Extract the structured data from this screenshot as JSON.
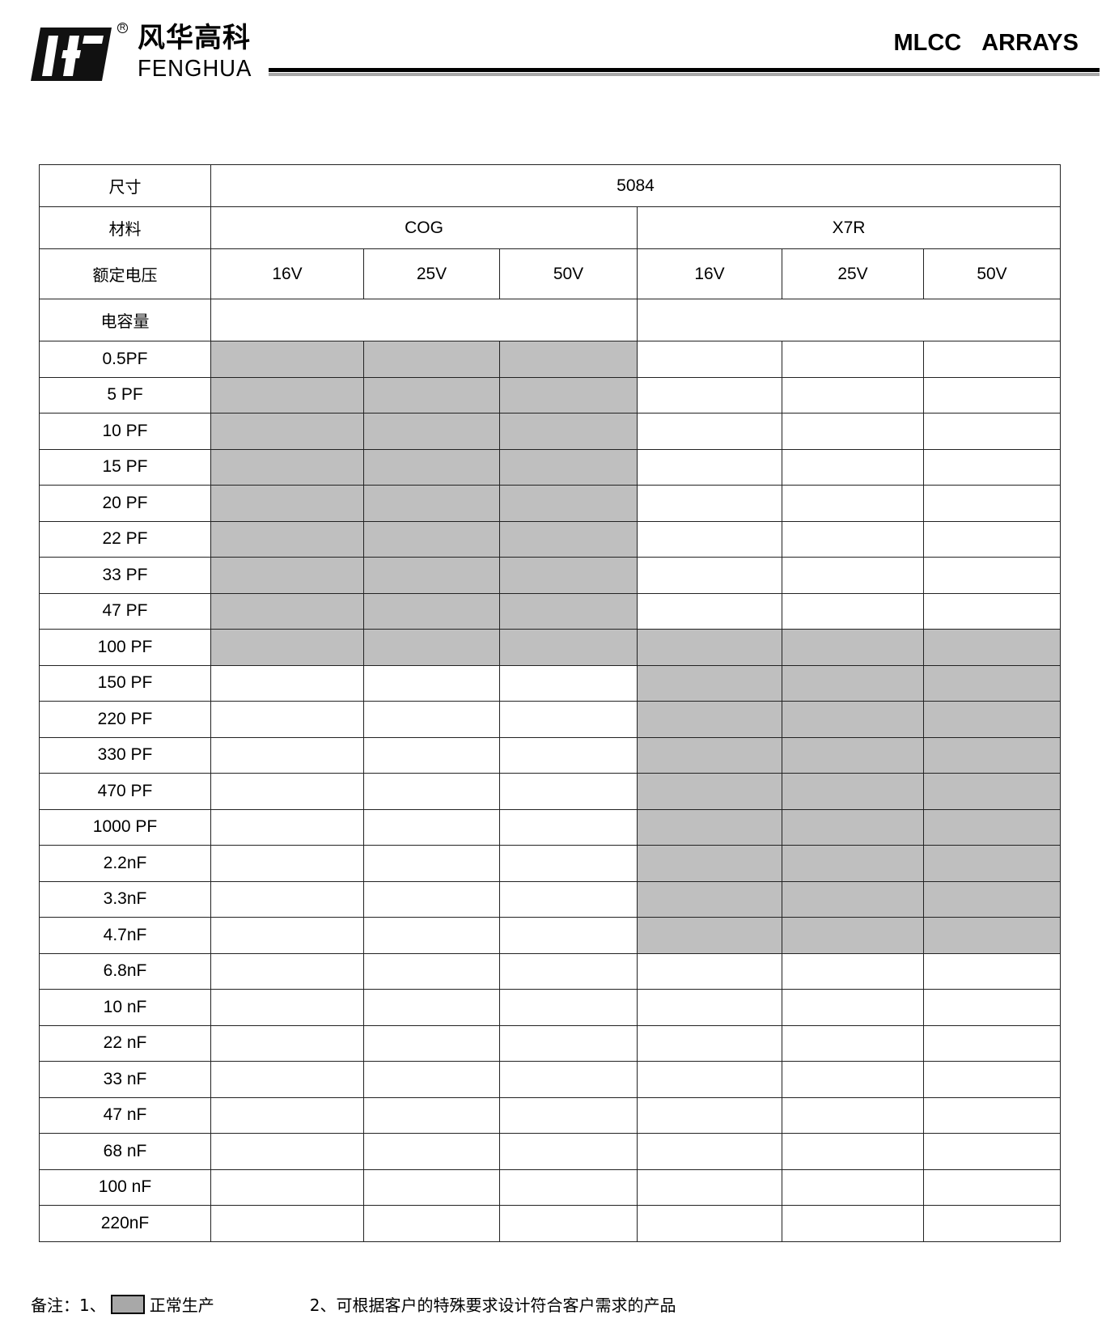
{
  "header": {
    "brand_cn": "风华高科",
    "brand_en": "FENGHUA",
    "registered": "R",
    "title": "MLCC ARRAYS"
  },
  "table": {
    "size_label": "尺寸",
    "size_value": "5084",
    "material_label": "材料",
    "materials": [
      "COG",
      "X7R"
    ],
    "voltage_label": "额定电压",
    "voltages": [
      "16V",
      "25V",
      "50V",
      "16V",
      "25V",
      "50V"
    ],
    "capacitance_label": "电容量",
    "rows": [
      {
        "cap": "0.5PF",
        "avail": [
          1,
          1,
          1,
          0,
          0,
          0
        ]
      },
      {
        "cap": "5 PF",
        "avail": [
          1,
          1,
          1,
          0,
          0,
          0
        ]
      },
      {
        "cap": "10 PF",
        "avail": [
          1,
          1,
          1,
          0,
          0,
          0
        ]
      },
      {
        "cap": "15 PF",
        "avail": [
          1,
          1,
          1,
          0,
          0,
          0
        ]
      },
      {
        "cap": "20 PF",
        "avail": [
          1,
          1,
          1,
          0,
          0,
          0
        ]
      },
      {
        "cap": "22 PF",
        "avail": [
          1,
          1,
          1,
          0,
          0,
          0
        ]
      },
      {
        "cap": "33 PF",
        "avail": [
          1,
          1,
          1,
          0,
          0,
          0
        ]
      },
      {
        "cap": "47 PF",
        "avail": [
          1,
          1,
          1,
          0,
          0,
          0
        ]
      },
      {
        "cap": "100 PF",
        "avail": [
          1,
          1,
          1,
          1,
          1,
          1
        ]
      },
      {
        "cap": "150 PF",
        "avail": [
          0,
          0,
          0,
          1,
          1,
          1
        ]
      },
      {
        "cap": "220 PF",
        "avail": [
          0,
          0,
          0,
          1,
          1,
          1
        ]
      },
      {
        "cap": "330 PF",
        "avail": [
          0,
          0,
          0,
          1,
          1,
          1
        ]
      },
      {
        "cap": "470 PF",
        "avail": [
          0,
          0,
          0,
          1,
          1,
          1
        ]
      },
      {
        "cap": "1000 PF",
        "avail": [
          0,
          0,
          0,
          1,
          1,
          1
        ]
      },
      {
        "cap": "2.2nF",
        "avail": [
          0,
          0,
          0,
          1,
          1,
          1
        ]
      },
      {
        "cap": "3.3nF",
        "avail": [
          0,
          0,
          0,
          1,
          1,
          1
        ]
      },
      {
        "cap": "4.7nF",
        "avail": [
          0,
          0,
          0,
          1,
          1,
          1
        ]
      },
      {
        "cap": "6.8nF",
        "avail": [
          0,
          0,
          0,
          0,
          0,
          0
        ]
      },
      {
        "cap": "10 nF",
        "avail": [
          0,
          0,
          0,
          0,
          0,
          0
        ]
      },
      {
        "cap": "22 nF",
        "avail": [
          0,
          0,
          0,
          0,
          0,
          0
        ]
      },
      {
        "cap": "33 nF",
        "avail": [
          0,
          0,
          0,
          0,
          0,
          0
        ]
      },
      {
        "cap": "47 nF",
        "avail": [
          0,
          0,
          0,
          0,
          0,
          0
        ]
      },
      {
        "cap": "68 nF",
        "avail": [
          0,
          0,
          0,
          0,
          0,
          0
        ]
      },
      {
        "cap": "100 nF",
        "avail": [
          0,
          0,
          0,
          0,
          0,
          0
        ]
      },
      {
        "cap": "220nF",
        "avail": [
          0,
          0,
          0,
          0,
          0,
          0
        ]
      }
    ]
  },
  "colors": {
    "available": "#bfbfbf"
  },
  "footer": {
    "note_prefix": "备注：1、",
    "legend_label": "正常生产",
    "note2": "2、可根据客户的特殊要求设计符合客户需求的产品"
  }
}
